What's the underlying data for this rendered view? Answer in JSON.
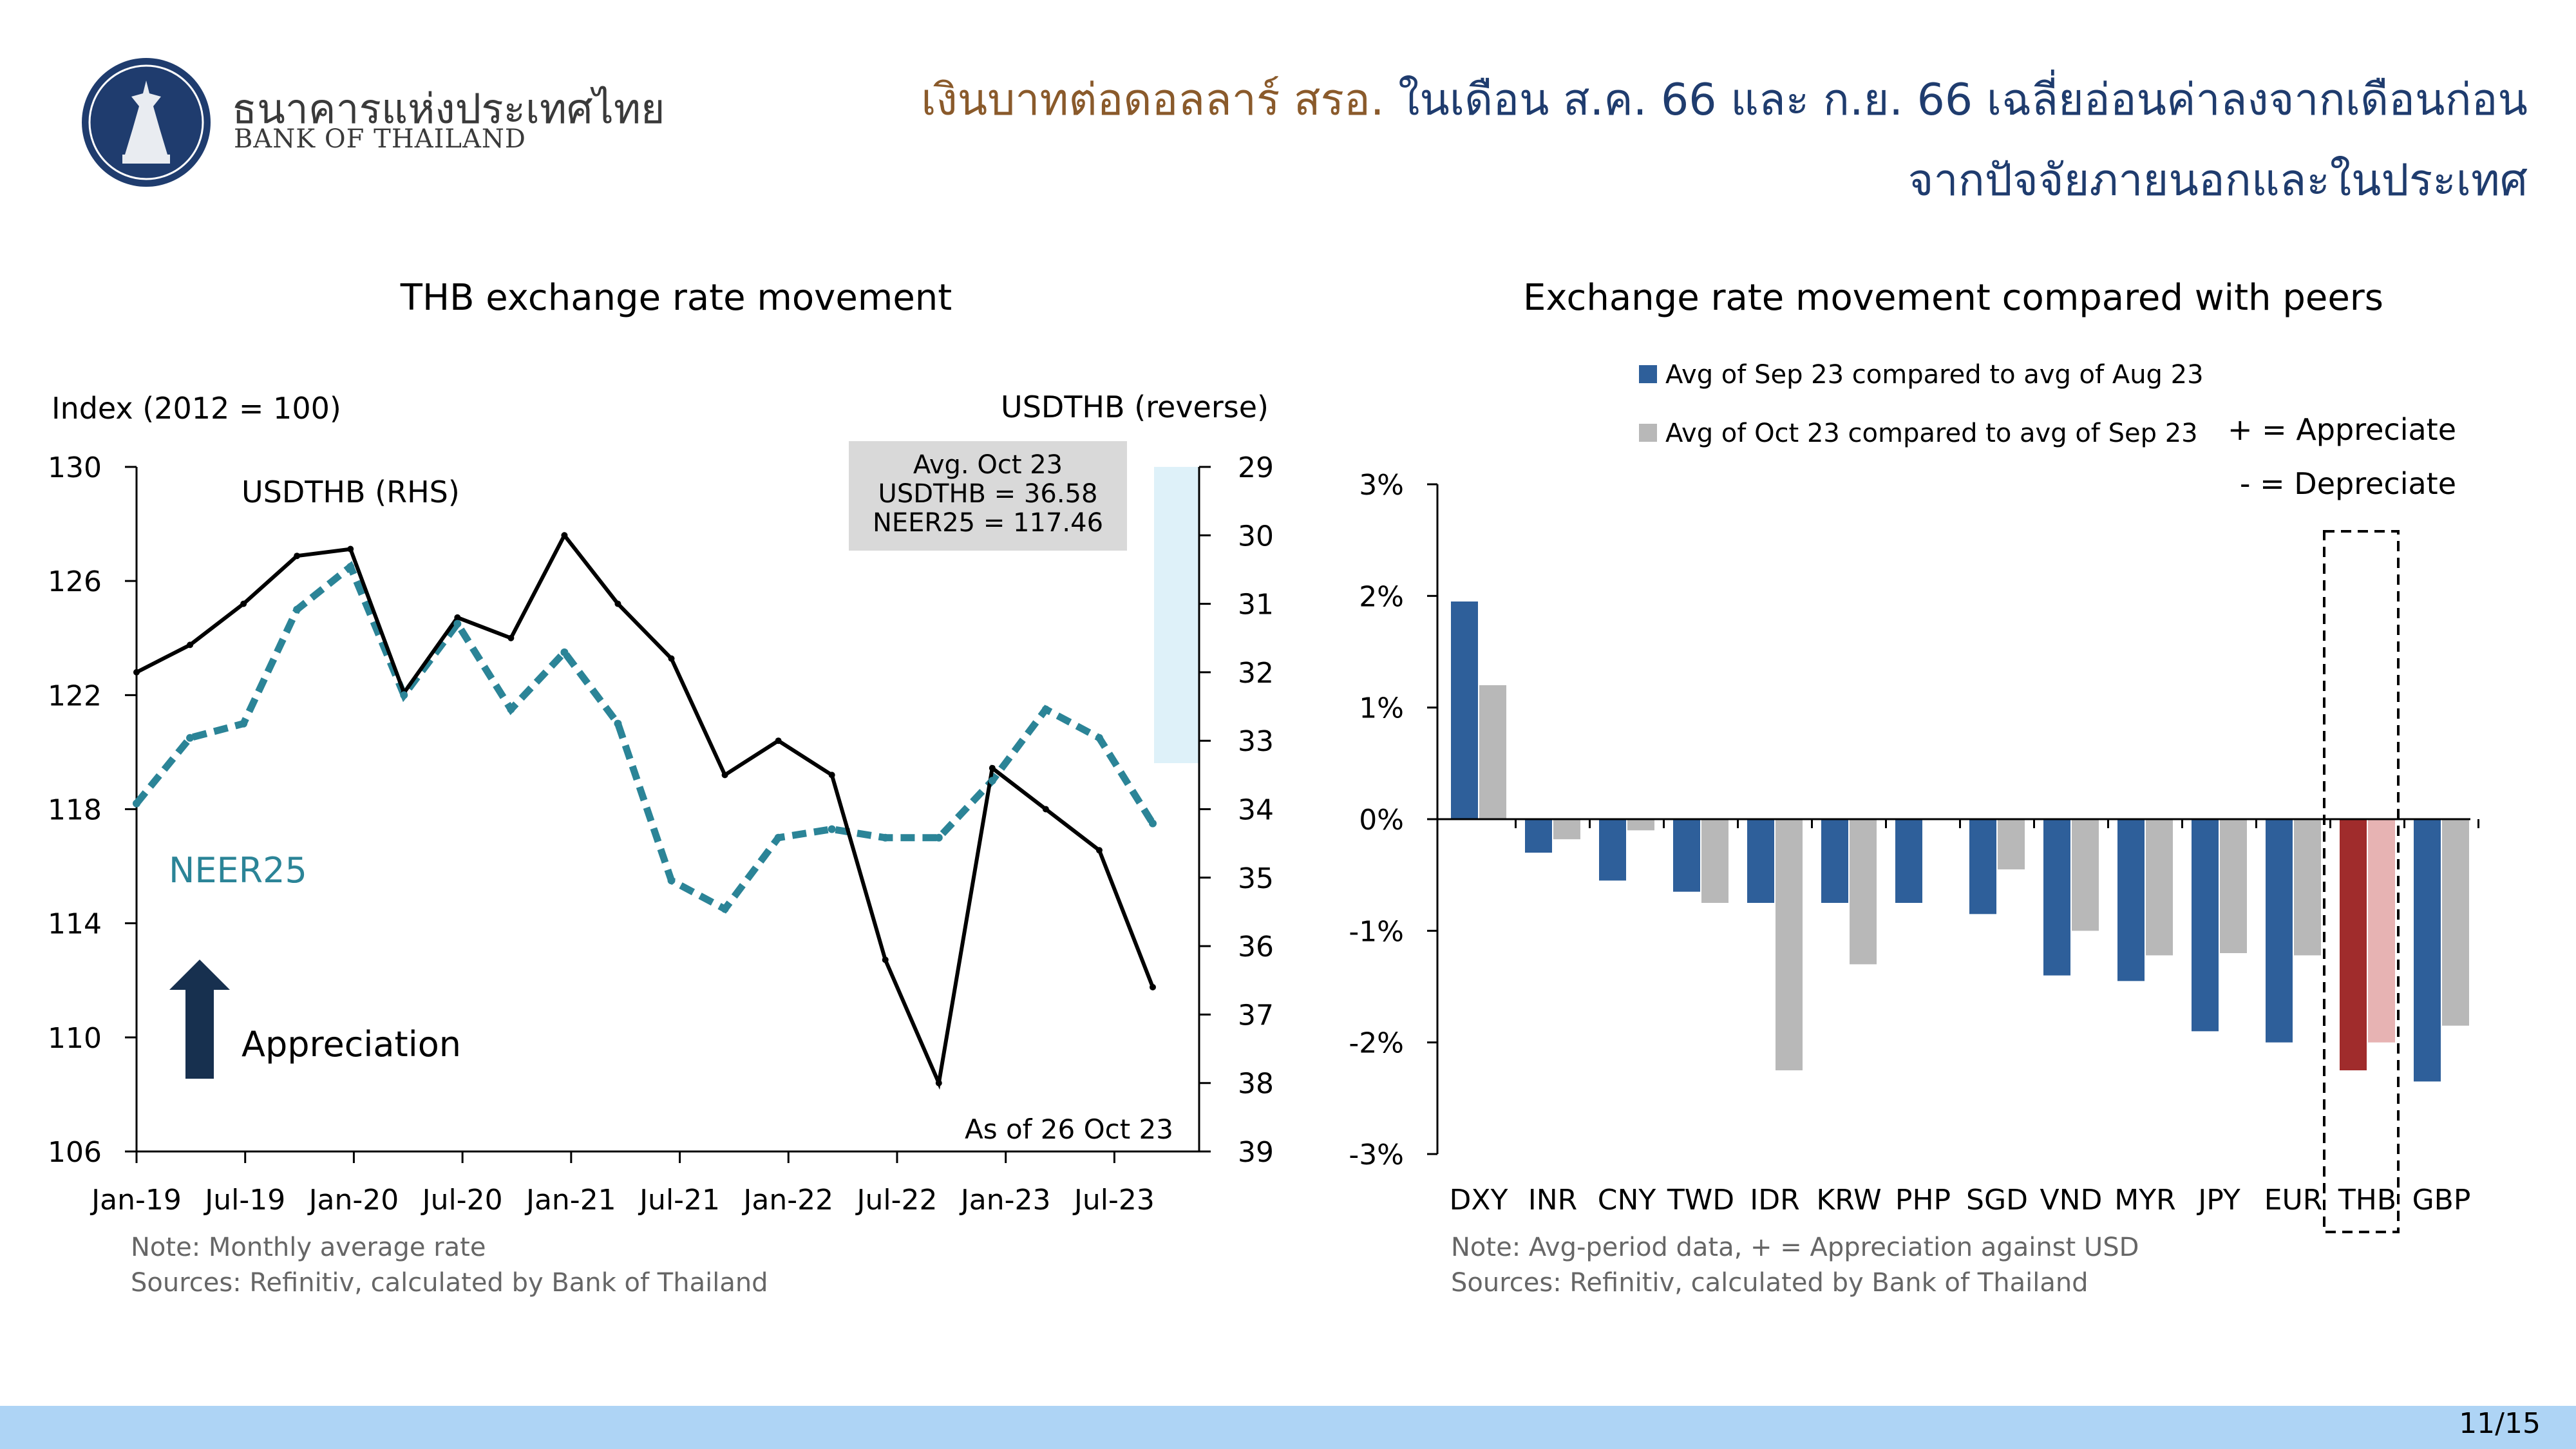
{
  "header": {
    "bank_name_th": "ธนาคารแห่งประเทศไทย",
    "bank_name_en": "BANK OF THAILAND",
    "headline_part1": "เงินบาทต่อดอลลาร์ สรอ.",
    "headline_part2": " ในเดือน ส.ค. 66 และ ก.ย. 66 เฉลี่ยอ่อนค่าลงจากเดือนก่อน",
    "headline_line2": "จากปัจจัยภายนอกและในประเทศ"
  },
  "colors": {
    "navy": "#2e5f9a",
    "gray": "#b8b8b8",
    "teal": "#2b8497",
    "thb_dark": "#a02c2c",
    "thb_light": "#e7b3b3",
    "footer": "#aed4f5"
  },
  "footer": {
    "page": "11/15"
  },
  "chart_data": [
    {
      "type": "line",
      "title": "THB exchange rate movement",
      "ylabel_left": "Index (2012 = 100)",
      "ylabel_right": "USDTHB (reverse)",
      "left_ticks": [
        "130",
        "126",
        "122",
        "118",
        "114",
        "110",
        "106"
      ],
      "right_ticks": [
        "29",
        "30",
        "31",
        "32",
        "33",
        "34",
        "35",
        "36",
        "37",
        "38",
        "39"
      ],
      "x_ticks": [
        "Jan-19",
        "Jul-19",
        "Jan-20",
        "Jul-20",
        "Jan-21",
        "Jul-21",
        "Jan-22",
        "Jul-22",
        "Jan-23",
        "Jul-23"
      ],
      "ylim_left": [
        106,
        130
      ],
      "ylim_right_reversed": [
        29,
        39
      ],
      "x": [
        "Jan-19",
        "Apr-19",
        "Jul-19",
        "Oct-19",
        "Jan-20",
        "Apr-20",
        "Jul-20",
        "Oct-20",
        "Jan-21",
        "Apr-21",
        "Jul-21",
        "Oct-21",
        "Jan-22",
        "Apr-22",
        "Jul-22",
        "Oct-22",
        "Jan-23",
        "Apr-23",
        "Jul-23",
        "Oct-23"
      ],
      "series": [
        {
          "name": "USDTHB (RHS)",
          "axis": "right",
          "values": [
            32.0,
            31.6,
            31.0,
            30.3,
            30.2,
            32.3,
            31.2,
            31.5,
            30.0,
            31.0,
            31.8,
            33.5,
            33.0,
            33.5,
            36.2,
            38.0,
            33.4,
            34.0,
            34.6,
            36.6
          ]
        },
        {
          "name": "NEER25",
          "axis": "left",
          "values": [
            118.2,
            120.5,
            121.0,
            125.0,
            126.5,
            122.0,
            124.5,
            121.5,
            123.5,
            121.0,
            115.5,
            114.5,
            117.0,
            117.3,
            117.0,
            117.0,
            119.0,
            121.5,
            120.5,
            117.5
          ]
        }
      ],
      "labels": {
        "usdthb": "USDTHB (RHS)",
        "neer": "NEER25",
        "appreciation": "Appreciation",
        "as_of": "As of 26 Oct 23"
      },
      "avg_box": {
        "line1": "Avg. Oct 23",
        "line2": "USDTHB = 36.58",
        "line3": "NEER25 = 117.46"
      },
      "note": "Note: Monthly average rate",
      "source": "Sources: Refinitiv, calculated by Bank of Thailand"
    },
    {
      "type": "bar",
      "title": "Exchange rate movement compared with peers",
      "categories": [
        "DXY",
        "INR",
        "CNY",
        "TWD",
        "IDR",
        "KRW",
        "PHP",
        "SGD",
        "VND",
        "MYR",
        "JPY",
        "EUR",
        "THB",
        "GBP"
      ],
      "series": [
        {
          "name": "Avg of Sep 23 compared to avg of Aug 23",
          "values": [
            1.95,
            -0.3,
            -0.55,
            -0.65,
            -0.75,
            -0.75,
            -0.75,
            -0.85,
            -1.4,
            -1.45,
            -1.9,
            -2.0,
            -2.25,
            -2.35
          ]
        },
        {
          "name": "Avg of Oct 23 compared to avg of Sep 23",
          "values": [
            1.2,
            -0.18,
            -0.1,
            -0.75,
            -2.25,
            -1.3,
            null,
            -0.45,
            -1.0,
            -1.22,
            -1.2,
            -1.22,
            -2.0,
            -1.85
          ]
        }
      ],
      "y_ticks": [
        "3%",
        "2%",
        "1%",
        "0%",
        "-1%",
        "-2%",
        "-3%"
      ],
      "ylim": [
        -3,
        3
      ],
      "legend_notes": {
        "plus": "+ = Appreciate",
        "minus": "- = Depreciate"
      },
      "note": "Note: Avg-period data, + = Appreciation against USD",
      "source": "Sources: Refinitiv, calculated by Bank of Thailand"
    }
  ]
}
